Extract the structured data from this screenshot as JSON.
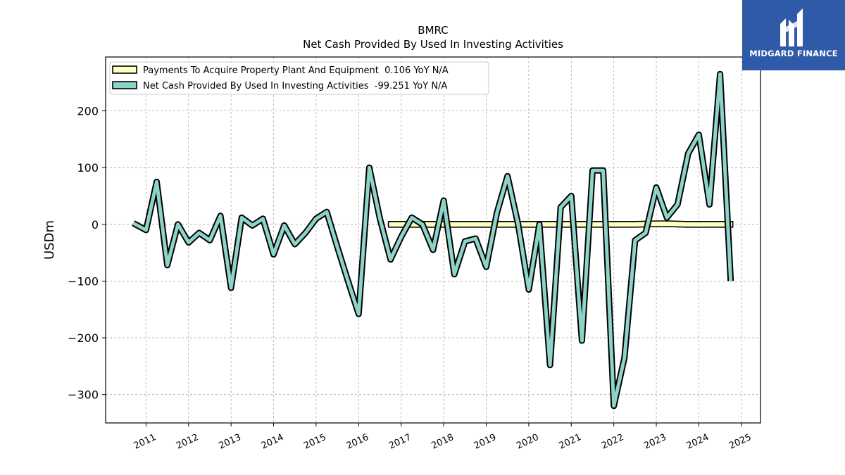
{
  "brand": {
    "name": "MIDGARD FINANCE",
    "color": "#2e5aa8",
    "icon": "midgard-logo-icon"
  },
  "chart_data": {
    "type": "line",
    "title": "BMRC",
    "subtitle": "Net Cash Provided By Used In Investing Activities",
    "xlabel": "",
    "ylabel": "USDm",
    "ylim": [
      -350,
      295
    ],
    "xlim": [
      2010.05,
      2025.45
    ],
    "yticks": [
      -300,
      -200,
      -100,
      0,
      100,
      200
    ],
    "ytick_labels": [
      "−300",
      "−200",
      "−100",
      "0",
      "100",
      "200"
    ],
    "xticks": [
      2011,
      2012,
      2013,
      2014,
      2015,
      2016,
      2017,
      2018,
      2019,
      2020,
      2021,
      2022,
      2023,
      2024,
      2025
    ],
    "xtick_labels": [
      "2011",
      "2012",
      "2013",
      "2014",
      "2015",
      "2016",
      "2017",
      "2018",
      "2019",
      "2020",
      "2021",
      "2022",
      "2023",
      "2024",
      "2025"
    ],
    "grid": true,
    "legend_position": "top-left",
    "series": [
      {
        "name": "Payments To Acquire Property Plant And Equipment  0.106 YoY N/A",
        "style": "band",
        "color": "#ffffc0",
        "x": [
          2016.7,
          2017.0,
          2017.5,
          2018.0,
          2018.5,
          2019.0,
          2019.5,
          2020.0,
          2020.5,
          2021.0,
          2021.5,
          2022.0,
          2022.5,
          2023.0,
          2023.3,
          2023.7,
          2024.0,
          2024.5,
          2024.8
        ],
        "values": [
          0,
          0,
          0,
          0,
          0,
          0,
          0,
          0,
          0,
          0,
          0,
          0,
          0,
          1,
          1,
          0,
          0,
          0,
          0
        ]
      },
      {
        "name": "Net Cash Provided By Used In Investing Activities  -99.251 YoY N/A",
        "style": "line",
        "color": "#8dd3c7",
        "x": [
          2010.7,
          2011.0,
          2011.25,
          2011.5,
          2011.75,
          2012.0,
          2012.25,
          2012.5,
          2012.75,
          2013.0,
          2013.25,
          2013.5,
          2013.75,
          2014.0,
          2014.25,
          2014.5,
          2014.75,
          2015.0,
          2015.25,
          2015.5,
          2015.75,
          2016.0,
          2016.25,
          2016.5,
          2016.75,
          2017.0,
          2017.25,
          2017.5,
          2017.75,
          2018.0,
          2018.25,
          2018.5,
          2018.75,
          2019.0,
          2019.25,
          2019.5,
          2019.75,
          2020.0,
          2020.25,
          2020.5,
          2020.75,
          2021.0,
          2021.25,
          2021.5,
          2021.75,
          2022.0,
          2022.25,
          2022.5,
          2022.75,
          2023.0,
          2023.25,
          2023.5,
          2023.75,
          2024.0,
          2024.25,
          2024.5,
          2024.75
        ],
        "values": [
          2,
          -10,
          75,
          -72,
          0,
          -32,
          -15,
          -28,
          15,
          -112,
          12,
          -2,
          10,
          -53,
          -2,
          -35,
          -15,
          10,
          22,
          -40,
          -100,
          -158,
          100,
          10,
          -62,
          -22,
          12,
          0,
          -45,
          42,
          -88,
          -30,
          -25,
          -75,
          20,
          85,
          0,
          -115,
          0,
          -248,
          30,
          50,
          -205,
          95,
          95,
          -320,
          -235,
          -28,
          -15,
          65,
          12,
          35,
          125,
          158,
          35,
          265,
          -100
        ]
      }
    ]
  }
}
